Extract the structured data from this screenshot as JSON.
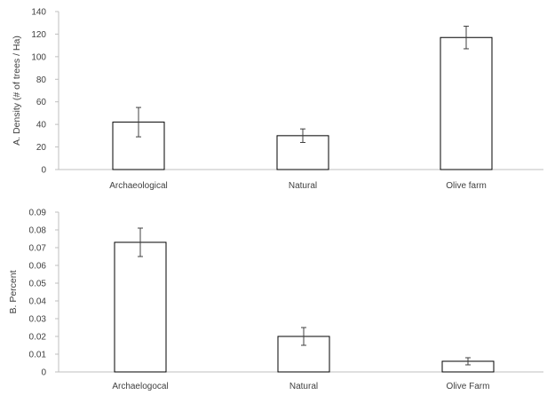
{
  "chart_data": [
    {
      "type": "bar",
      "categories": [
        "Archaeological",
        "Natural",
        "Olive farm"
      ],
      "values": [
        42,
        30,
        117
      ],
      "errors": [
        13,
        6,
        10
      ],
      "ylabel": "A. Density (# of trees / Ha)",
      "ylim": [
        0,
        140
      ],
      "yticks": [
        "0",
        "20",
        "40",
        "60",
        "80",
        "100",
        "120",
        "140"
      ],
      "bar_fill": "#ffffff",
      "bar_stroke": "#000000",
      "axis_color": "#bfbfbf",
      "grid": false
    },
    {
      "type": "bar",
      "categories": [
        "Archaelogocal",
        "Natural",
        "Olive Farm"
      ],
      "values": [
        0.073,
        0.02,
        0.006
      ],
      "errors": [
        0.008,
        0.005,
        0.002
      ],
      "ylabel": "B. Percent",
      "ylim": [
        0,
        0.09
      ],
      "yticks": [
        "0",
        "0.01",
        "0.02",
        "0.03",
        "0.04",
        "0.05",
        "0.06",
        "0.07",
        "0.08",
        "0.09"
      ],
      "bar_fill": "#ffffff",
      "bar_stroke": "#000000",
      "axis_color": "#bfbfbf",
      "grid": false
    }
  ]
}
